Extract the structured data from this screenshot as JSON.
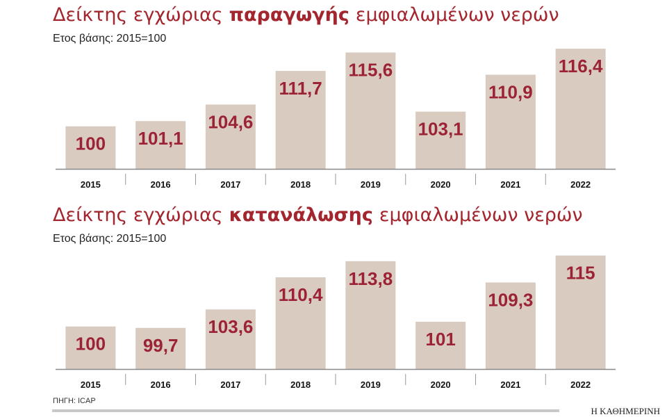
{
  "chart_data": [
    {
      "type": "bar",
      "title": [
        "Δείκτης εγχώριας",
        "παραγωγής",
        "εμφιαλωμένων νερών"
      ],
      "subtitle": "Ετος βάσης: 2015=100",
      "categories": [
        "2015",
        "2016",
        "2017",
        "2018",
        "2019",
        "2020",
        "2021",
        "2022"
      ],
      "values": [
        100,
        101.1,
        104.6,
        111.7,
        115.6,
        103.1,
        110.9,
        116.4
      ],
      "value_labels": [
        "100",
        "101,1",
        "104,6",
        "111,7",
        "115,6",
        "103,1",
        "110,9",
        "116,4"
      ],
      "color": "#d9cbc0",
      "ylim": [
        91,
        117
      ]
    },
    {
      "type": "bar",
      "title": [
        "Δείκτης εγχώριας",
        "κατανάλωσης",
        "εμφιαλωμένων νερών"
      ],
      "subtitle": "Ετος βάσης: 2015=100",
      "categories": [
        "2015",
        "2016",
        "2017",
        "2018",
        "2019",
        "2020",
        "2021",
        "2022"
      ],
      "values": [
        100,
        99.7,
        103.6,
        110.4,
        113.8,
        101,
        109.3,
        115
      ],
      "value_labels": [
        "100",
        "99,7",
        "103,6",
        "110,4",
        "113,8",
        "101",
        "109,3",
        "115"
      ],
      "color": "#d9cbc0",
      "ylim": [
        91,
        117
      ]
    }
  ],
  "source": "ΠΗΓΗ: ICAP",
  "credit": "Η ΚΑΘΗΜΕΡΙΝΗ"
}
